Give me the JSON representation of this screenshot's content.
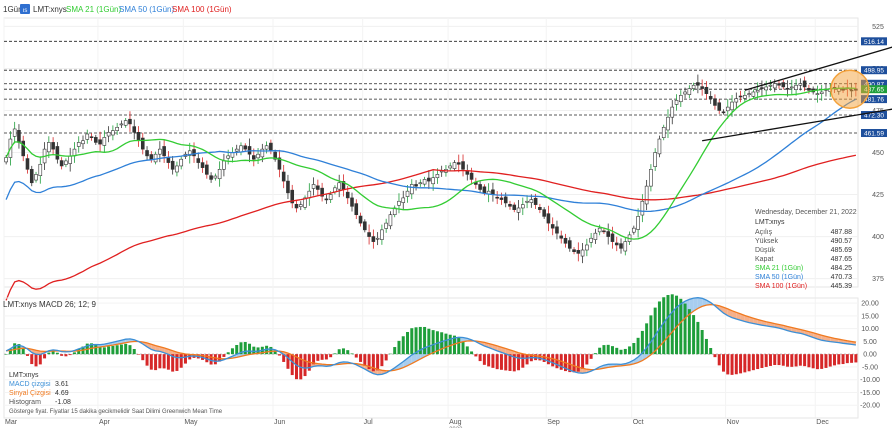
{
  "header": {
    "interval": "1Gün",
    "badge": "ıs",
    "symbol": "LMT:xnys",
    "sma21_label": "SMA 21 (1Gün)",
    "sma50_label": "SMA 50 (1Gün)",
    "sma100_label": "SMA 100 (1Gün)"
  },
  "colors": {
    "up": "#1e9e3a",
    "down": "#d62728",
    "sma21": "#33cc33",
    "sma50": "#2f80d8",
    "sma100": "#e02020",
    "macd": "#3c8fd6",
    "signal": "#f07a20",
    "fill_pos": "#a8cdee",
    "fill_neg": "#f5b08a",
    "circle": "#f3a13a"
  },
  "info_panel": {
    "date": "Wednesday, December 21, 2022",
    "symbol": "LMT:xnys",
    "rows": [
      {
        "label": "Açılış",
        "value": "487.88"
      },
      {
        "label": "Yüksek",
        "value": "490.57"
      },
      {
        "label": "Düşük",
        "value": "485.69"
      },
      {
        "label": "Kapat",
        "value": "487.65"
      },
      {
        "label": "SMA 21 (1Gün)",
        "value": "484.25"
      },
      {
        "label": "SMA 50 (1Gün)",
        "value": "470.73"
      },
      {
        "label": "SMA 100 (1Gün)",
        "value": "445.39"
      }
    ]
  },
  "macd_panel": {
    "title": "LMT:xnys  MACD 26; 12; 9",
    "legend_symbol": "LMT:xnys",
    "legend": [
      {
        "label": "MACD çizgisi",
        "value": "3.61"
      },
      {
        "label": "Sinyal Çizgisi",
        "value": "4.69"
      },
      {
        "label": "Histogram",
        "value": "-1.08"
      }
    ],
    "footer": "Gösterge fiyat. Fiyatlar 15 dakika gecikmelidir    Saat Dilimi  Greenwich Mean Time"
  },
  "chart_data": [
    {
      "type": "candlestick",
      "title": "LMT:xnys",
      "ylim": [
        370,
        530
      ],
      "y_ticks": [
        375,
        400,
        425,
        450,
        475,
        500,
        525
      ],
      "months": [
        {
          "label": "Mar",
          "index": 0
        },
        {
          "label": "Apr",
          "index": 22
        },
        {
          "label": "May",
          "index": 42
        },
        {
          "label": "Jun",
          "index": 63
        },
        {
          "label": "Jul",
          "index": 84
        },
        {
          "label": "Aug",
          "index": 104
        },
        {
          "label": "Sep",
          "index": 127
        },
        {
          "label": "Oct",
          "index": 147
        },
        {
          "label": "Nov",
          "index": 169
        },
        {
          "label": "Dec",
          "index": 190
        }
      ],
      "year_label": "2022",
      "closes": [
        447,
        458,
        464,
        456,
        448,
        440,
        432,
        437,
        443,
        452,
        456,
        452,
        446,
        442,
        445,
        448,
        452,
        456,
        457,
        461,
        459,
        456,
        455,
        459,
        462,
        463,
        465,
        467,
        469,
        467,
        462,
        457,
        452,
        448,
        446,
        449,
        452,
        448,
        444,
        440,
        442,
        446,
        449,
        451,
        448,
        444,
        441,
        437,
        434,
        436,
        440,
        445,
        448,
        450,
        452,
        454,
        452,
        449,
        446,
        449,
        452,
        454,
        451,
        446,
        440,
        433,
        426,
        420,
        417,
        419,
        423,
        427,
        431,
        428,
        424,
        422,
        425,
        429,
        432,
        428,
        423,
        418,
        413,
        408,
        404,
        400,
        397,
        399,
        404,
        408,
        413,
        417,
        421,
        423,
        427,
        431,
        430,
        432,
        434,
        433,
        435,
        437,
        439,
        440,
        442,
        444,
        443,
        440,
        437,
        434,
        431,
        428,
        426,
        427,
        425,
        423,
        422,
        420,
        418,
        416,
        417,
        419,
        421,
        422,
        419,
        416,
        412,
        408,
        405,
        402,
        399,
        396,
        393,
        391,
        390,
        392,
        395,
        399,
        402,
        405,
        403,
        400,
        397,
        395,
        393,
        397,
        401,
        405,
        412,
        421,
        430,
        440,
        450,
        458,
        465,
        471,
        477,
        481,
        484,
        486,
        488,
        490,
        490,
        488,
        485,
        482,
        478,
        475,
        474,
        477,
        480,
        482,
        483,
        484,
        485,
        486,
        487,
        488,
        489,
        490,
        491,
        490,
        489,
        488,
        489,
        490,
        491,
        489,
        487,
        486,
        485,
        486,
        487,
        488,
        488,
        488,
        487,
        488,
        487,
        487
      ],
      "sma_last_values": {
        "sma21": 484.25,
        "sma50": 470.73,
        "sma100": 445.39
      },
      "horizontal_levels": [
        {
          "value": 516.14,
          "label": "516.14",
          "color": "#1e4f9c"
        },
        {
          "value": 498.95,
          "label": "498.95",
          "color": "#1e4f9c"
        },
        {
          "value": 490.87,
          "label": "490.87",
          "color": "#1e4f9c"
        },
        {
          "value": 487.65,
          "label": "487.65",
          "color": "#1e9e3a"
        },
        {
          "value": 481.76,
          "label": "481.76",
          "color": "#1e4f9c"
        },
        {
          "value": 472.3,
          "label": "472.30",
          "color": "#1e4f9c"
        },
        {
          "value": 461.59,
          "label": "461.59",
          "color": "#1e4f9c"
        }
      ],
      "trend_channel": {
        "upper": [
          {
            "i": 173,
            "v": 487
          },
          {
            "i": 212,
            "v": 516
          }
        ],
        "lower": [
          {
            "i": 163,
            "v": 457
          },
          {
            "i": 208,
            "v": 476
          }
        ]
      },
      "highlight_circle": {
        "i": 199,
        "v": 487.65
      }
    },
    {
      "type": "macd",
      "title": "MACD 26; 12; 9",
      "ylim": [
        -25,
        22
      ],
      "y_ticks": [
        -20,
        -15,
        -10,
        -5,
        0,
        5,
        10,
        15,
        20
      ],
      "macd_last": 3.61,
      "signal_last": 4.69,
      "histogram_last": -1.08
    }
  ]
}
